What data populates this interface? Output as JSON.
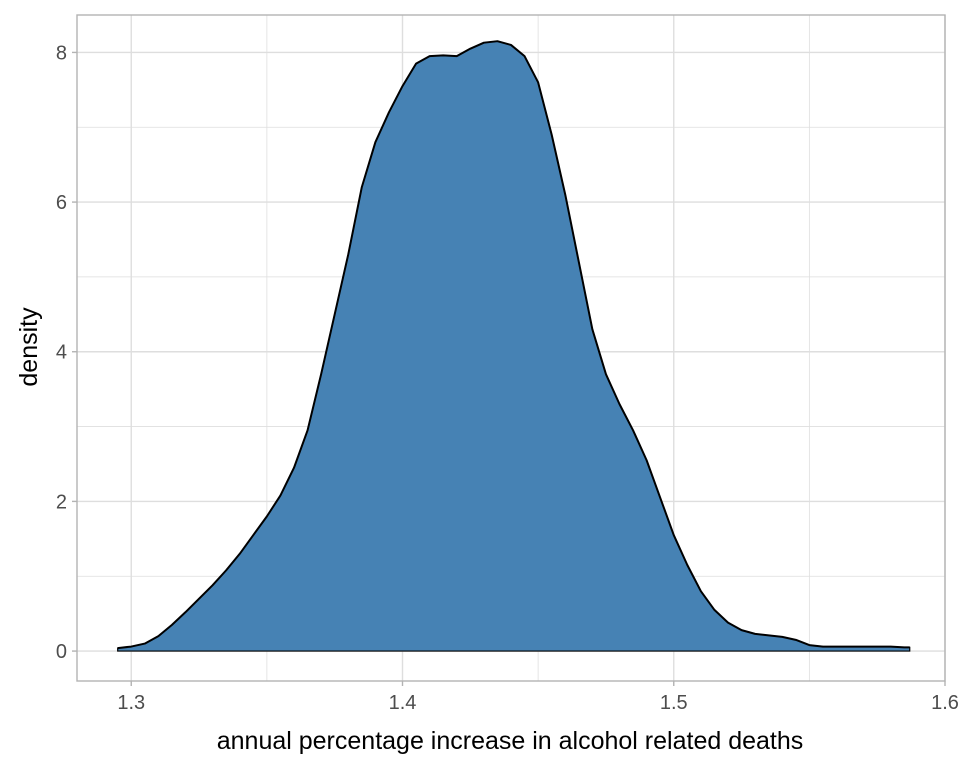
{
  "chart_data": {
    "type": "area",
    "title": "",
    "xlabel": "annual percentage increase in alcohol related deaths",
    "ylabel": "density",
    "xlim": [
      1.28,
      1.6
    ],
    "ylim": [
      -0.4,
      8.5
    ],
    "x_ticks": [
      1.3,
      1.4,
      1.5,
      1.6
    ],
    "x_tick_labels": [
      "1.3",
      "1.4",
      "1.5",
      "1.6"
    ],
    "x_minor_ticks": [
      1.35,
      1.45,
      1.55
    ],
    "y_ticks": [
      0,
      2,
      4,
      6,
      8
    ],
    "y_tick_labels": [
      "0",
      "2",
      "4",
      "6",
      "8"
    ],
    "y_minor_ticks": [
      1,
      3,
      5,
      7
    ],
    "grid": true,
    "colors": {
      "fill": "#4682b4",
      "line": "#000000",
      "grid": "#dedede",
      "panel_border": "#b3b3b3"
    },
    "x": [
      1.295,
      1.3,
      1.305,
      1.31,
      1.315,
      1.32,
      1.325,
      1.33,
      1.335,
      1.34,
      1.345,
      1.35,
      1.355,
      1.36,
      1.365,
      1.37,
      1.375,
      1.38,
      1.385,
      1.39,
      1.395,
      1.4,
      1.405,
      1.41,
      1.415,
      1.42,
      1.425,
      1.43,
      1.435,
      1.44,
      1.445,
      1.45,
      1.455,
      1.46,
      1.465,
      1.47,
      1.475,
      1.48,
      1.485,
      1.49,
      1.495,
      1.5,
      1.505,
      1.51,
      1.515,
      1.52,
      1.525,
      1.53,
      1.535,
      1.54,
      1.545,
      1.55,
      1.555,
      1.56,
      1.565,
      1.57,
      1.575,
      1.58,
      1.585,
      1.587
    ],
    "y": [
      0.04,
      0.06,
      0.1,
      0.2,
      0.35,
      0.52,
      0.7,
      0.88,
      1.08,
      1.3,
      1.55,
      1.8,
      2.08,
      2.45,
      2.95,
      3.7,
      4.5,
      5.3,
      6.2,
      6.8,
      7.2,
      7.55,
      7.85,
      7.95,
      7.96,
      7.95,
      8.05,
      8.13,
      8.15,
      8.1,
      7.95,
      7.6,
      6.9,
      6.1,
      5.2,
      4.3,
      3.7,
      3.3,
      2.95,
      2.55,
      2.05,
      1.55,
      1.15,
      0.8,
      0.55,
      0.38,
      0.28,
      0.23,
      0.21,
      0.19,
      0.15,
      0.08,
      0.06,
      0.06,
      0.06,
      0.06,
      0.06,
      0.06,
      0.05,
      0.05
    ]
  }
}
